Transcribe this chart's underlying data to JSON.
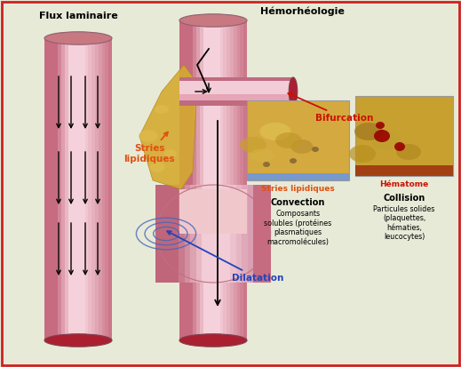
{
  "bg_color": "#e8ead8",
  "title_flux": "Flux laminaire",
  "title_hemo": "Hémorhéologie",
  "label_stries_orange": "Stries\nlipidiques",
  "label_bifurcation": "Bifurcation",
  "label_stries_bottom": "Stries lipidiques",
  "label_hematome": "Hématome",
  "label_convection_title": "Convection",
  "label_convection_body": "Composants\nsolubles (protéines\nplasmatiques\nmacromolécules)",
  "label_collision_title": "Collision",
  "label_collision_body": "Particules solides\n(plaquettes,\nhématies,\nleucocytes)",
  "label_dilatation": "Dilatation",
  "tube_outer": "#d07080",
  "tube_mid": "#dda0a8",
  "tube_inner": "#f0c8cc",
  "tube_highlight": "#f8e0e2",
  "tube_dark": "#b05060",
  "tube_end": "#aa2030",
  "arrow_color": "#111111",
  "orange_color": "#e05010",
  "red_color": "#cc1100",
  "blue_color": "#2244bb",
  "border_color": "#cc2222",
  "plaque_color": "#d4a830",
  "plaque_edge": "#b08820",
  "photo1_bg": "#d4aa40",
  "photo2_bg": "#c8a030",
  "branch_color": "#c07080"
}
